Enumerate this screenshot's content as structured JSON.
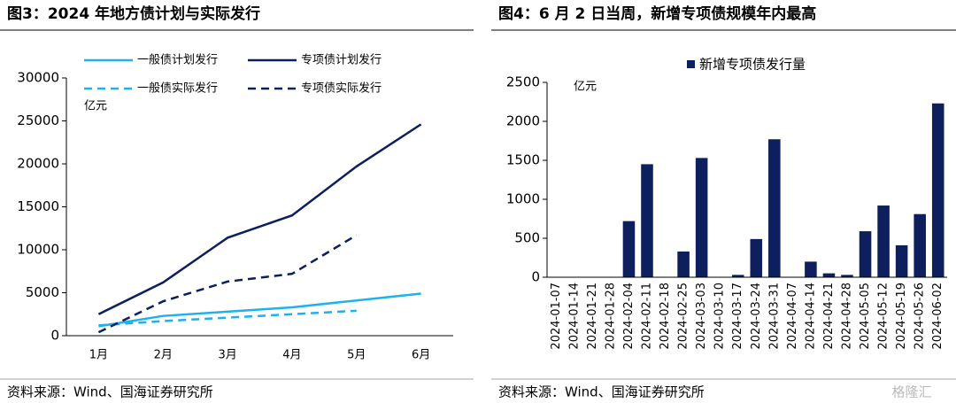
{
  "chart_data": [
    {
      "type": "line",
      "title": "图3：2024 年地方债计划与实际发行",
      "y_unit": "亿元",
      "categories": [
        "1月",
        "2月",
        "3月",
        "4月",
        "5月",
        "6月"
      ],
      "series": [
        {
          "name": "一般债计划发行",
          "color": "#1fb1ee",
          "dashed": false,
          "values": [
            1100,
            2300,
            2800,
            3300,
            4100,
            4900
          ]
        },
        {
          "name": "专项债计划发行",
          "color": "#0d1f5c",
          "dashed": false,
          "values": [
            2500,
            6200,
            11400,
            14000,
            19700,
            24600
          ]
        },
        {
          "name": "一般债实际发行",
          "color": "#1fb1ee",
          "dashed": true,
          "values": [
            1200,
            1700,
            2100,
            2500,
            2900,
            null
          ]
        },
        {
          "name": "专项债实际发行",
          "color": "#0d1f5c",
          "dashed": true,
          "values": [
            400,
            4000,
            6300,
            7200,
            11700,
            null
          ]
        }
      ],
      "ylim": [
        0,
        30000
      ],
      "yticks": [
        0,
        5000,
        10000,
        15000,
        20000,
        25000,
        30000
      ],
      "source": "资料来源：Wind、国海证券研究所"
    },
    {
      "type": "bar",
      "title": "图4：6 月 2 日当周，新增专项债规模年内最高",
      "y_unit": "亿元",
      "categories": [
        "2024-01-07",
        "2024-01-14",
        "2024-01-21",
        "2024-01-28",
        "2024-02-04",
        "2024-02-11",
        "2024-02-18",
        "2024-02-25",
        "2024-03-03",
        "2024-03-10",
        "2024-03-17",
        "2024-03-24",
        "2024-03-31",
        "2024-04-07",
        "2024-04-14",
        "2024-04-21",
        "2024-04-28",
        "2024-05-05",
        "2024-05-12",
        "2024-05-19",
        "2024-05-26",
        "2024-06-02"
      ],
      "series": [
        {
          "name": "新增专项债发行量",
          "color": "#0d1f5c",
          "values": [
            0,
            0,
            0,
            0,
            720,
            1450,
            0,
            330,
            1530,
            0,
            30,
            490,
            1770,
            0,
            200,
            50,
            30,
            590,
            920,
            410,
            810,
            2230
          ]
        }
      ],
      "ylim": [
        0,
        2500
      ],
      "yticks": [
        0,
        500,
        1000,
        1500,
        2000,
        2500
      ],
      "source": "资料来源：Wind、国海证券研究所"
    }
  ],
  "watermark": "格隆汇"
}
